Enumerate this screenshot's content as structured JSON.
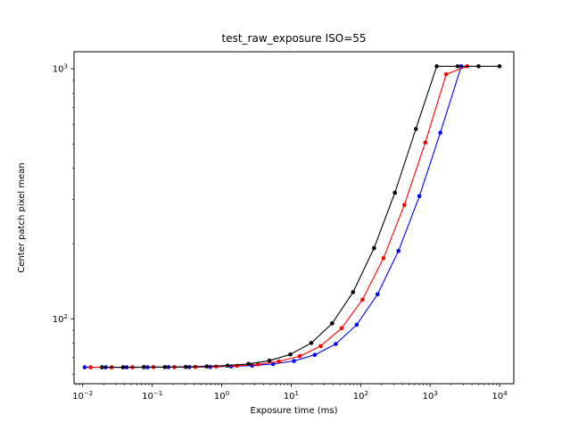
{
  "figure": {
    "background": "#ffffff",
    "axes_color": "#000000"
  },
  "chart_data": {
    "type": "line",
    "title": "test_raw_exposure ISO=55",
    "xlabel": "Exposure time (ms)",
    "ylabel": "Center patch pixel mean",
    "xscale": "log",
    "yscale": "log",
    "grid": false,
    "legend": "none",
    "xlim": [
      0.0075,
      16000
    ],
    "ylim": [
      55,
      1170
    ],
    "x_major_tick_exponents": [
      -2,
      -1,
      0,
      1,
      2,
      3,
      4
    ],
    "y_major_tick_exponents": [
      2,
      3
    ],
    "black_level": 64,
    "white_level": 1023,
    "series": [
      {
        "name": "blue",
        "color": "#0000ff",
        "x": [
          0.0107,
          0.0214,
          0.0428,
          0.0856,
          0.171,
          0.342,
          0.685,
          1.37,
          2.74,
          5.48,
          10.96,
          21.9,
          43.8,
          87.7,
          175.3,
          350.6,
          701.2,
          1402,
          2805
        ],
        "y": [
          64.0,
          64.0,
          64.0,
          64.0,
          64.1,
          64.1,
          64.2,
          64.5,
          65.0,
          65.9,
          67.8,
          71.7,
          79.3,
          94.7,
          125.4,
          186.7,
          309.4,
          554.9,
          1023
        ]
      },
      {
        "name": "red",
        "color": "#ff0000",
        "x": [
          0.013,
          0.026,
          0.052,
          0.104,
          0.208,
          0.416,
          0.832,
          1.66,
          3.33,
          6.66,
          13.3,
          26.6,
          53.2,
          106.5,
          213,
          426,
          852,
          1704,
          3408
        ],
        "y": [
          64.0,
          64.0,
          64.0,
          64.1,
          64.1,
          64.2,
          64.4,
          64.9,
          65.7,
          67.5,
          70.9,
          77.8,
          91.7,
          119.4,
          174.8,
          285.5,
          507.0,
          950.0,
          1023
        ]
      },
      {
        "name": "black",
        "color": "#000000",
        "x": [
          0.019,
          0.038,
          0.076,
          0.152,
          0.304,
          0.608,
          1.22,
          2.43,
          4.86,
          9.73,
          19.5,
          38.9,
          77.8,
          155.6,
          311.3,
          622.6,
          1245,
          2490,
          4981,
          9961
        ],
        "y": [
          64.0,
          64.0,
          64.1,
          64.1,
          64.2,
          64.5,
          65.0,
          66.0,
          68.0,
          72.0,
          80.0,
          95.9,
          127.8,
          191.6,
          319.3,
          574.5,
          1023,
          1023,
          1023,
          1023
        ]
      }
    ]
  }
}
